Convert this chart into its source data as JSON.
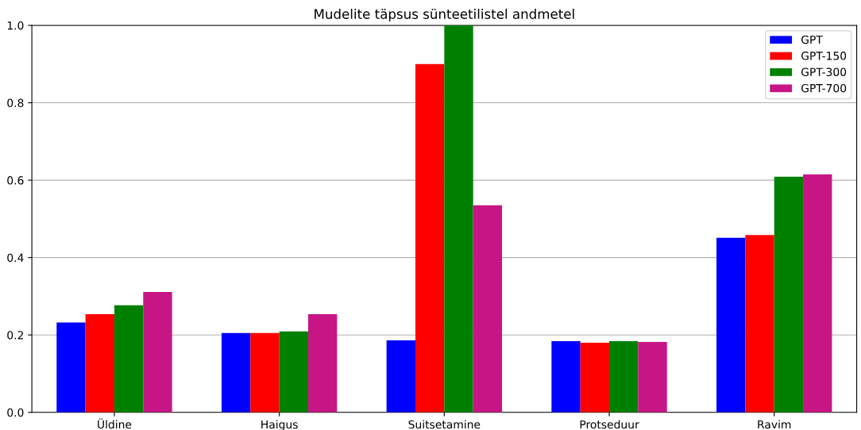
{
  "chart_data": {
    "type": "bar",
    "title": "Mudelite täpsus sünteetilistel andmetel",
    "categories": [
      "Üldine",
      "Haigus",
      "Suitsetamine",
      "Protseduur",
      "Ravim"
    ],
    "series": [
      {
        "name": "GPT",
        "color": "#0000ff",
        "values": [
          0.232,
          0.205,
          0.186,
          0.184,
          0.451
        ]
      },
      {
        "name": "GPT-150",
        "color": "#ff0000",
        "values": [
          0.254,
          0.205,
          0.9,
          0.18,
          0.458
        ]
      },
      {
        "name": "GPT-300",
        "color": "#008000",
        "values": [
          0.277,
          0.209,
          1.0,
          0.184,
          0.609
        ]
      },
      {
        "name": "GPT-700",
        "color": "#c71585",
        "values": [
          0.311,
          0.254,
          0.535,
          0.182,
          0.615
        ]
      }
    ],
    "ylim": [
      0,
      1
    ],
    "yticks": [
      {
        "value": 0,
        "label": "0.0"
      },
      {
        "value": 0.2,
        "label": "0.2"
      },
      {
        "value": 0.4,
        "label": "0.4"
      },
      {
        "value": 0.6,
        "label": "0.6"
      },
      {
        "value": 0.8,
        "label": "0.8"
      },
      {
        "value": 1,
        "label": "1.0"
      }
    ],
    "grid": "y",
    "legend": "top right"
  }
}
